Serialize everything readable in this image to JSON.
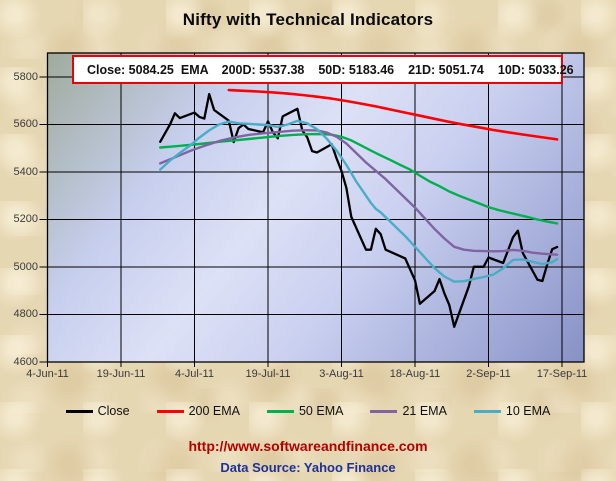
{
  "title": "Nifty with Technical Indicators",
  "info_box": {
    "close": "Close: 5084.25",
    "ema_tag": "EMA",
    "d200": "200D: 5537.38",
    "d50": "50D: 5183.46",
    "d21": "21D: 5051.74",
    "d10": "10D: 5033.26",
    "border_color": "#ee0000"
  },
  "footer": {
    "url": "http://www.softwareandfinance.com",
    "url_color": "#b30000",
    "source": "Data Source: Yahoo Finance",
    "source_color": "#1f3099"
  },
  "chart_data": {
    "type": "line",
    "x_unit": "days since 4-Jun-11",
    "x_range": [
      0,
      105
    ],
    "ylim": [
      4600,
      5901
    ],
    "grid": true,
    "legend_position": "bottom",
    "background": {
      "page": "#e6d7b3",
      "plot_gradient": [
        "#9fab9d",
        "#dde1f6",
        "#8791c4"
      ]
    },
    "yticks": [
      5800,
      5600,
      5400,
      5200,
      5000,
      4800,
      4600
    ],
    "xticks": [
      {
        "label": "4-Jun-11",
        "day": 0
      },
      {
        "label": "19-Jun-11",
        "day": 15
      },
      {
        "label": "4-Jul-11",
        "day": 30
      },
      {
        "label": "19-Jul-11",
        "day": 45
      },
      {
        "label": "3-Aug-11",
        "day": 60
      },
      {
        "label": "18-Aug-11",
        "day": 75
      },
      {
        "label": "2-Sep-11",
        "day": 90
      },
      {
        "label": "17-Sep-11",
        "day": 105
      }
    ],
    "series": [
      {
        "name": "Close",
        "color": "#000000",
        "width": 2.3,
        "points": [
          [
            23,
            5527
          ],
          [
            25,
            5600
          ],
          [
            26,
            5647
          ],
          [
            27,
            5627
          ],
          [
            30,
            5650
          ],
          [
            31,
            5632
          ],
          [
            32,
            5625
          ],
          [
            33,
            5728
          ],
          [
            34,
            5661
          ],
          [
            37,
            5616
          ],
          [
            38,
            5526
          ],
          [
            39,
            5585
          ],
          [
            40,
            5600
          ],
          [
            41,
            5581
          ],
          [
            44,
            5567
          ],
          [
            45,
            5613
          ],
          [
            46,
            5567
          ],
          [
            47,
            5542
          ],
          [
            48,
            5634
          ],
          [
            51,
            5666
          ],
          [
            52,
            5575
          ],
          [
            53,
            5546
          ],
          [
            54,
            5488
          ],
          [
            55,
            5482
          ],
          [
            58,
            5517
          ],
          [
            59,
            5457
          ],
          [
            60,
            5404
          ],
          [
            61,
            5332
          ],
          [
            62,
            5211
          ],
          [
            65,
            5073
          ],
          [
            66,
            5073
          ],
          [
            67,
            5161
          ],
          [
            68,
            5138
          ],
          [
            69,
            5073
          ],
          [
            73,
            5036
          ],
          [
            75,
            4944
          ],
          [
            76,
            4845
          ],
          [
            79,
            4899
          ],
          [
            80,
            4949
          ],
          [
            81,
            4889
          ],
          [
            82,
            4840
          ],
          [
            83,
            4748
          ],
          [
            86,
            4919
          ],
          [
            87,
            5001
          ],
          [
            89,
            5001
          ],
          [
            90,
            5040
          ],
          [
            93,
            5017
          ],
          [
            95,
            5125
          ],
          [
            96,
            5153
          ],
          [
            97,
            5059
          ],
          [
            100,
            4946
          ],
          [
            101,
            4941
          ],
          [
            102,
            5012
          ],
          [
            103,
            5075
          ],
          [
            104,
            5084.25
          ]
        ]
      },
      {
        "name": "200 EMA",
        "color": "#ff0000",
        "width": 2.6,
        "points": [
          [
            37,
            5745
          ],
          [
            40,
            5742
          ],
          [
            43,
            5739
          ],
          [
            46,
            5735
          ],
          [
            49,
            5730
          ],
          [
            52,
            5724
          ],
          [
            55,
            5717
          ],
          [
            58,
            5709
          ],
          [
            61,
            5699
          ],
          [
            64,
            5688
          ],
          [
            67,
            5676
          ],
          [
            70,
            5663
          ],
          [
            73,
            5650
          ],
          [
            76,
            5637
          ],
          [
            79,
            5624
          ],
          [
            82,
            5611
          ],
          [
            85,
            5599
          ],
          [
            88,
            5588
          ],
          [
            91,
            5577
          ],
          [
            94,
            5567
          ],
          [
            97,
            5558
          ],
          [
            100,
            5549
          ],
          [
            102,
            5543
          ],
          [
            104,
            5537.38
          ]
        ]
      },
      {
        "name": "50 EMA",
        "color": "#00b050",
        "width": 2.4,
        "points": [
          [
            23,
            5503
          ],
          [
            26,
            5508
          ],
          [
            29,
            5514
          ],
          [
            32,
            5520
          ],
          [
            35,
            5527
          ],
          [
            38,
            5533
          ],
          [
            41,
            5539
          ],
          [
            44,
            5545
          ],
          [
            47,
            5551
          ],
          [
            50,
            5556
          ],
          [
            53,
            5559
          ],
          [
            56,
            5560
          ],
          [
            58,
            5557
          ],
          [
            60,
            5548
          ],
          [
            62,
            5533
          ],
          [
            64,
            5512
          ],
          [
            66,
            5490
          ],
          [
            68,
            5470
          ],
          [
            70,
            5450
          ],
          [
            72,
            5430
          ],
          [
            74,
            5410
          ],
          [
            76,
            5385
          ],
          [
            78,
            5360
          ],
          [
            80,
            5340
          ],
          [
            82,
            5318
          ],
          [
            84,
            5300
          ],
          [
            86,
            5284
          ],
          [
            88,
            5268
          ],
          [
            90,
            5252
          ],
          [
            92,
            5240
          ],
          [
            94,
            5230
          ],
          [
            96,
            5220
          ],
          [
            98,
            5210
          ],
          [
            100,
            5200
          ],
          [
            102,
            5191
          ],
          [
            104,
            5183.46
          ]
        ]
      },
      {
        "name": "21 EMA",
        "color": "#8064a2",
        "width": 2.4,
        "points": [
          [
            23,
            5436
          ],
          [
            26,
            5462
          ],
          [
            29,
            5488
          ],
          [
            32,
            5510
          ],
          [
            35,
            5530
          ],
          [
            38,
            5545
          ],
          [
            41,
            5556
          ],
          [
            44,
            5563
          ],
          [
            47,
            5568
          ],
          [
            50,
            5574
          ],
          [
            53,
            5576
          ],
          [
            55,
            5575
          ],
          [
            57,
            5566
          ],
          [
            59,
            5548
          ],
          [
            61,
            5520
          ],
          [
            63,
            5480
          ],
          [
            65,
            5440
          ],
          [
            67,
            5405
          ],
          [
            69,
            5370
          ],
          [
            71,
            5330
          ],
          [
            73,
            5290
          ],
          [
            75,
            5250
          ],
          [
            77,
            5205
          ],
          [
            79,
            5160
          ],
          [
            81,
            5120
          ],
          [
            83,
            5085
          ],
          [
            85,
            5073
          ],
          [
            87,
            5068
          ],
          [
            89,
            5067
          ],
          [
            91,
            5066
          ],
          [
            93,
            5067
          ],
          [
            95,
            5072
          ],
          [
            97,
            5068
          ],
          [
            99,
            5060
          ],
          [
            101,
            5056
          ],
          [
            103,
            5053
          ],
          [
            104,
            5051.74
          ]
        ]
      },
      {
        "name": "10 EMA",
        "color": "#4bacc6",
        "width": 2.4,
        "points": [
          [
            23,
            5410
          ],
          [
            25,
            5448
          ],
          [
            27,
            5480
          ],
          [
            29,
            5510
          ],
          [
            31,
            5545
          ],
          [
            33,
            5575
          ],
          [
            35,
            5600
          ],
          [
            37,
            5612
          ],
          [
            39,
            5605
          ],
          [
            41,
            5603
          ],
          [
            43,
            5600
          ],
          [
            45,
            5598
          ],
          [
            47,
            5590
          ],
          [
            49,
            5600
          ],
          [
            51,
            5615
          ],
          [
            53,
            5605
          ],
          [
            55,
            5580
          ],
          [
            57,
            5540
          ],
          [
            59,
            5490
          ],
          [
            60,
            5460
          ],
          [
            61,
            5430
          ],
          [
            62,
            5395
          ],
          [
            63,
            5360
          ],
          [
            64,
            5330
          ],
          [
            65,
            5300
          ],
          [
            66,
            5270
          ],
          [
            67,
            5245
          ],
          [
            68,
            5230
          ],
          [
            69,
            5210
          ],
          [
            71,
            5170
          ],
          [
            73,
            5130
          ],
          [
            75,
            5085
          ],
          [
            77,
            5040
          ],
          [
            79,
            4995
          ],
          [
            81,
            4960
          ],
          [
            83,
            4938
          ],
          [
            85,
            4940
          ],
          [
            87,
            4950
          ],
          [
            89,
            4958
          ],
          [
            91,
            4968
          ],
          [
            93,
            4995
          ],
          [
            95,
            5030
          ],
          [
            97,
            5032
          ],
          [
            99,
            5022
          ],
          [
            101,
            5012
          ],
          [
            103,
            5020
          ],
          [
            104,
            5033.26
          ]
        ]
      }
    ],
    "legend": [
      {
        "label": "Close",
        "color": "#000000"
      },
      {
        "label": "200 EMA",
        "color": "#ff0000"
      },
      {
        "label": "50 EMA",
        "color": "#00b050"
      },
      {
        "label": "21 EMA",
        "color": "#8064a2"
      },
      {
        "label": "10 EMA",
        "color": "#4bacc6"
      }
    ]
  }
}
